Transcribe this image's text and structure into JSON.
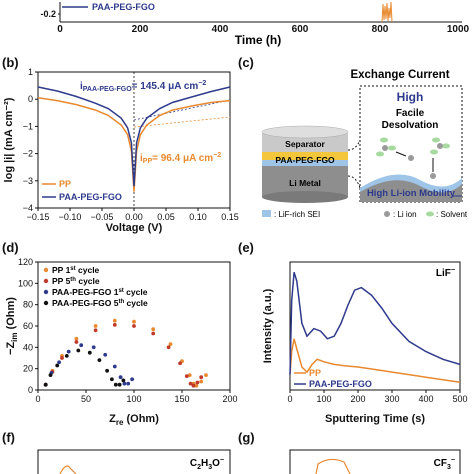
{
  "colors": {
    "pp": "#e8892e",
    "paa": "#2e3a8c",
    "axis": "#111111",
    "sei": "#9ec5e8",
    "separator": "#c9c9c9",
    "coating": "#f3c63b",
    "limetal": "#8e8e8e",
    "li_ion": "#9a9a9a",
    "solvent": "#a7d9a0"
  },
  "panel_a": {
    "ytick": "-0.2",
    "xticks": [
      "0",
      "200",
      "400",
      "600",
      "800",
      "1000"
    ],
    "xlabel": "Time (h)",
    "legend": [
      "PAA-PEG-FGO"
    ]
  },
  "panel_b": {
    "label": "(b)",
    "ann_paa": "i",
    "ann_paa_sub": "PAA-PEG-FGO",
    "ann_paa_val": "= 145.4 μA cm",
    "ann_paa_sup": "−2",
    "ann_pp": "i",
    "ann_pp_sub": "PP",
    "ann_pp_val": "= 96.4 μA cm",
    "ann_pp_sup": "−2",
    "legend": [
      "PP",
      "PAA-PEG-FGO"
    ]
  },
  "panel_c": {
    "label": "(c)",
    "title": "Exchange Current",
    "high": "High",
    "desolvation_line1": "Facile",
    "desolvation_line2": "Desolvation",
    "mobility": "High Li-ion Mobility",
    "separator": "Separator",
    "coating": "PAA-PEG-FGO",
    "metal": "Li Metal",
    "legend_sei": ": LiF-rich SEI",
    "legend_ion": ": Li ion",
    "legend_solvent": ": Solvent"
  },
  "panel_d": {
    "label": "(d)",
    "legend": [
      {
        "name": "PP",
        "sup": "st",
        "num": "1",
        "tail": "cycle"
      },
      {
        "name": "PP",
        "sup": "th",
        "num": "5",
        "tail": "cycle"
      },
      {
        "name": "PAA-PEG-FGO",
        "sup": "st",
        "num": "1",
        "tail": "cycle"
      },
      {
        "name": "PAA-PEG-FGO",
        "sup": "th",
        "num": "5",
        "tail": "cycle"
      }
    ],
    "xlabel_main": "Z",
    "xlabel_sub": "re",
    "xlabel_unit": " (Ohm)",
    "ylabel_main": "−Z",
    "ylabel_sub": "im",
    "ylabel_unit": " (Ohm)"
  },
  "panel_e": {
    "label": "(e)",
    "species": "LiF",
    "species_sup": "−",
    "xlabel": "Sputtering Time (s)",
    "ylabel": "Intensity (a.u.)",
    "legend": [
      "PP",
      "PAA-PEG-FGO"
    ]
  },
  "panel_f": {
    "label": "(f)",
    "species_main": "C",
    "species_sub1": "2",
    "species_mid": "H",
    "species_sub2": "3",
    "species_tail": "O",
    "species_sup": "−"
  },
  "panel_g": {
    "label": "(g)",
    "species_main": "CF",
    "species_sub": "3",
    "species_sup": "−"
  },
  "chart_data": [
    {
      "panel": "b",
      "type": "line",
      "xlabel": "Voltage (V)",
      "ylabel": "log |i| (mA cm⁻²)",
      "xlim": [
        -0.15,
        0.15
      ],
      "ylim": [
        -4,
        1
      ],
      "xticks": [
        -0.15,
        -0.1,
        -0.05,
        0.0,
        0.05,
        0.1,
        0.15
      ],
      "yticks": [
        -4,
        -3,
        -2,
        -1,
        0,
        1
      ],
      "series": [
        {
          "name": "PP",
          "x": [
            -0.15,
            -0.12,
            -0.09,
            -0.06,
            -0.04,
            -0.02,
            -0.01,
            -0.004,
            0.0,
            0.004,
            0.01,
            0.02,
            0.04,
            0.06,
            0.09,
            0.12,
            0.15
          ],
          "y": [
            0.05,
            -0.05,
            -0.2,
            -0.4,
            -0.6,
            -0.95,
            -1.3,
            -1.9,
            -3.4,
            -1.9,
            -1.3,
            -0.95,
            -0.6,
            -0.4,
            -0.25,
            -0.12,
            -0.05
          ]
        },
        {
          "name": "PAA-PEG-FGO",
          "x": [
            -0.15,
            -0.12,
            -0.09,
            -0.06,
            -0.04,
            -0.02,
            -0.01,
            -0.004,
            0.0,
            0.004,
            0.01,
            0.02,
            0.04,
            0.06,
            0.09,
            0.12,
            0.15
          ],
          "y": [
            0.45,
            0.3,
            0.1,
            -0.15,
            -0.35,
            -0.7,
            -1.05,
            -1.6,
            -3.2,
            -1.6,
            -1.05,
            -0.7,
            -0.35,
            -0.12,
            0.08,
            0.28,
            0.45
          ]
        }
      ]
    },
    {
      "panel": "d",
      "type": "scatter",
      "xlim": [
        0,
        200
      ],
      "ylim": [
        0,
        120
      ],
      "xticks": [
        0,
        50,
        100,
        150,
        200
      ],
      "yticks": [
        0,
        20,
        40,
        60,
        80,
        100,
        120
      ],
      "series": [
        {
          "name": "PP 1st cycle",
          "x": [
            8,
            15,
            25,
            40,
            60,
            80,
            100,
            120,
            138,
            150,
            158,
            162,
            165,
            170,
            175
          ],
          "y": [
            5,
            18,
            32,
            48,
            60,
            65,
            64,
            57,
            43,
            27,
            14,
            6,
            4,
            8,
            14
          ]
        },
        {
          "name": "PP 5th cycle",
          "x": [
            8,
            15,
            25,
            40,
            60,
            80,
            100,
            120,
            136,
            148,
            155,
            159,
            162,
            166,
            170
          ],
          "y": [
            5,
            17,
            30,
            45,
            56,
            61,
            60,
            53,
            40,
            25,
            13,
            6,
            4,
            7,
            12
          ]
        },
        {
          "name": "PAA-PEG-FGO 1st cycle",
          "x": [
            8,
            14,
            22,
            32,
            45,
            58,
            70,
            80,
            86,
            90,
            94,
            98
          ],
          "y": [
            5,
            16,
            26,
            36,
            42,
            40,
            33,
            22,
            12,
            6,
            6,
            10
          ]
        },
        {
          "name": "PAA-PEG-FGO 5th cycle",
          "x": [
            8,
            13,
            20,
            30,
            42,
            54,
            64,
            72,
            77,
            81,
            85,
            89
          ],
          "y": [
            5,
            14,
            23,
            32,
            37,
            35,
            28,
            18,
            10,
            5,
            5,
            9
          ]
        }
      ]
    },
    {
      "panel": "e",
      "type": "line",
      "xlim": [
        0,
        500
      ],
      "xticks": [
        0,
        100,
        200,
        300,
        400,
        500
      ],
      "series": [
        {
          "name": "PP",
          "x": [
            0,
            5,
            12,
            20,
            35,
            50,
            65,
            80,
            100,
            130,
            160,
            200,
            250,
            300,
            350,
            400,
            450,
            500
          ],
          "y": [
            0.12,
            0.3,
            0.4,
            0.32,
            0.18,
            0.14,
            0.2,
            0.24,
            0.22,
            0.2,
            0.19,
            0.18,
            0.16,
            0.14,
            0.12,
            0.1,
            0.08,
            0.06
          ]
        },
        {
          "name": "PAA-PEG-FGO",
          "x": [
            0,
            5,
            12,
            20,
            35,
            50,
            70,
            90,
            110,
            130,
            150,
            170,
            190,
            210,
            240,
            270,
            300,
            350,
            400,
            450,
            500
          ],
          "y": [
            0.12,
            0.7,
            0.92,
            0.85,
            0.52,
            0.42,
            0.48,
            0.46,
            0.4,
            0.42,
            0.52,
            0.66,
            0.78,
            0.8,
            0.74,
            0.64,
            0.52,
            0.38,
            0.3,
            0.24,
            0.2
          ]
        }
      ]
    }
  ]
}
